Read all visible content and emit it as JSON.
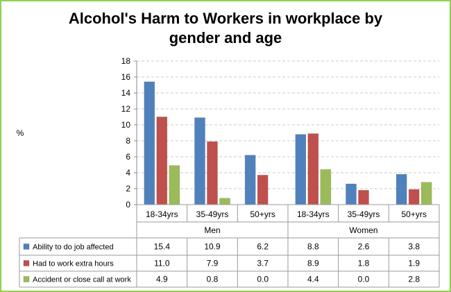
{
  "chart_data": {
    "type": "bar",
    "title_lines": [
      "Alcohol's Harm to Workers in workplace by",
      "gender and age"
    ],
    "ylabel": "%",
    "ylim": [
      0,
      18
    ],
    "yticks": [
      0,
      2,
      4,
      6,
      8,
      10,
      12,
      14,
      16,
      18
    ],
    "grid": true,
    "legend": "table-left",
    "groups": [
      {
        "name": "Men",
        "categories": [
          "18-34yrs",
          "35-49yrs",
          "50+yrs"
        ]
      },
      {
        "name": "Women",
        "categories": [
          "18-34yrs",
          "35-49yrs",
          "50+yrs"
        ]
      }
    ],
    "series": [
      {
        "name": "Ability to do job affected",
        "color": "#4f81bd",
        "values": [
          15.4,
          10.9,
          6.2,
          8.8,
          2.6,
          3.8
        ],
        "labels": [
          "15.4",
          "10.9",
          "6.2",
          "8.8",
          "2.6",
          "3.8"
        ]
      },
      {
        "name": "Had to work extra hours",
        "color": "#c0504d",
        "values": [
          11.0,
          7.9,
          3.7,
          8.9,
          1.8,
          1.9
        ],
        "labels": [
          "11.0",
          "7.9",
          "3.7",
          "8.9",
          "1.8",
          "1.9"
        ]
      },
      {
        "name": "Accident or close call at work",
        "color": "#9bbb59",
        "values": [
          4.9,
          0.8,
          0.0,
          4.4,
          0.0,
          2.8
        ],
        "labels": [
          "4.9",
          "0.8",
          "0.0",
          "4.4",
          "0.0",
          "2.8"
        ]
      }
    ]
  }
}
